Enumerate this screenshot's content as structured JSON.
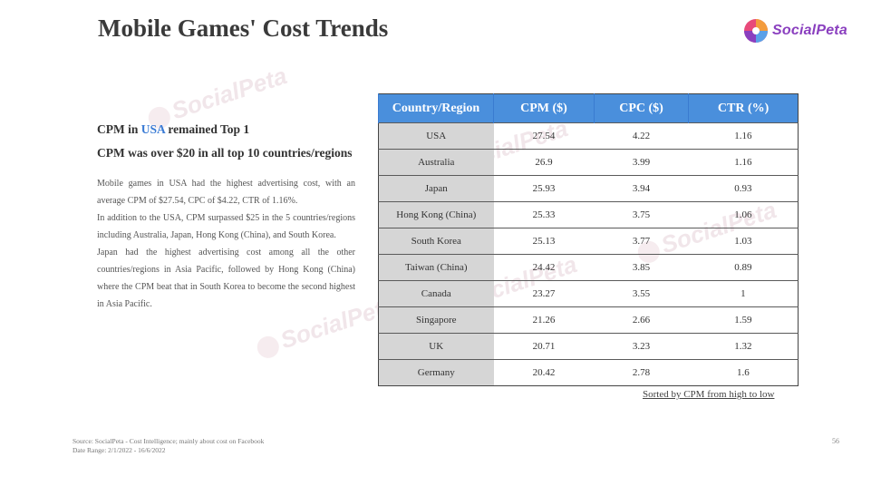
{
  "title": "Mobile Games' Cost Trends",
  "logo": {
    "name": "SocialPeta",
    "icon": "socialpeta-logo-icon"
  },
  "headline": {
    "line1_prefix": "CPM in ",
    "line1_highlight": "USA",
    "line1_suffix": " remained Top 1",
    "line2": "CPM was over $20 in all top 10 countries/regions"
  },
  "paragraphs": [
    "Mobile games in USA had the highest advertising cost, with an average CPM of $27.54, CPC of $4.22, CTR of 1.16%.",
    "In addition to the USA, CPM surpassed $25 in the 5 countries/regions including Australia, Japan, Hong Kong (China), and South Korea.",
    "Japan had the highest advertising cost among all the other countries/regions in Asia Pacific, followed by Hong Kong (China) where the CPM beat that in South Korea to become the second highest in Asia Pacific."
  ],
  "table": {
    "headers": [
      "Country/Region",
      "CPM ($)",
      "CPC ($)",
      "CTR (%)"
    ],
    "rows": [
      [
        "USA",
        "27.54",
        "4.22",
        "1.16"
      ],
      [
        "Australia",
        "26.9",
        "3.99",
        "1.16"
      ],
      [
        "Japan",
        "25.93",
        "3.94",
        "0.93"
      ],
      [
        "Hong Kong (China)",
        "25.33",
        "3.75",
        "1.06"
      ],
      [
        "South Korea",
        "25.13",
        "3.77",
        "1.03"
      ],
      [
        "Taiwan (China)",
        "24.42",
        "3.85",
        "0.89"
      ],
      [
        "Canada",
        "23.27",
        "3.55",
        "1"
      ],
      [
        "Singapore",
        "21.26",
        "2.66",
        "1.59"
      ],
      [
        "UK",
        "20.71",
        "3.23",
        "1.32"
      ],
      [
        "Germany",
        "20.42",
        "2.78",
        "1.6"
      ]
    ],
    "note": "Sorted by CPM from high to low"
  },
  "footer": {
    "source": "Source: SocialPeta - Cost Intelligence; mainly about cost on Facebook",
    "date_range": "Date Range: 2/1/2022 - 16/6/2022",
    "page_number": "56"
  },
  "colors": {
    "header_bg": "#4a8fdc",
    "country_col_bg": "#d6d6d6",
    "highlight": "#3a7bd5",
    "logo_text": "#8a3fbf"
  }
}
